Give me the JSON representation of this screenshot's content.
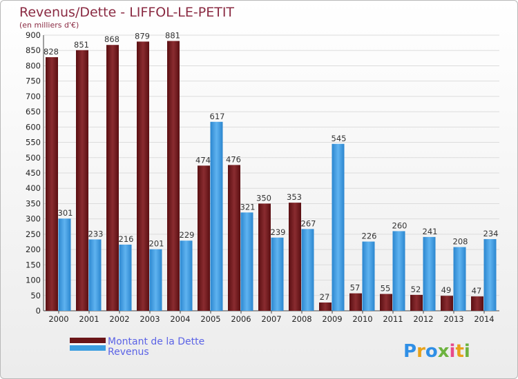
{
  "chart_data": {
    "type": "bar",
    "title": "Revenus/Dette - LIFFOL-LE-PETIT",
    "subtitle": "(en milliers d'€)",
    "categories": [
      "2000",
      "2001",
      "2002",
      "2003",
      "2004",
      "2005",
      "2006",
      "2007",
      "2008",
      "2009",
      "2010",
      "2011",
      "2012",
      "2013",
      "2014"
    ],
    "series": [
      {
        "name": "Montant de la Dette",
        "color": "#7a1e22",
        "values": [
          828,
          851,
          868,
          879,
          881,
          474,
          476,
          350,
          353,
          27,
          57,
          55,
          52,
          49,
          47
        ]
      },
      {
        "name": "Revenus",
        "color": "#3d9ee0",
        "values": [
          301,
          233,
          216,
          201,
          229,
          617,
          321,
          239,
          267,
          545,
          226,
          260,
          241,
          208,
          234
        ]
      }
    ],
    "ylim": [
      0,
      900
    ],
    "yticks": [
      0,
      50,
      100,
      150,
      200,
      250,
      300,
      350,
      400,
      450,
      500,
      550,
      600,
      650,
      700,
      750,
      800,
      850,
      900
    ],
    "grid": true,
    "legend": "bottom-left"
  },
  "logo": {
    "text": "Proxiti",
    "colors": [
      "#2f8fe6",
      "#e8a21a",
      "#2f8fe6",
      "#6db33f",
      "#e84a8a",
      "#e8a21a",
      "#6db33f"
    ]
  }
}
